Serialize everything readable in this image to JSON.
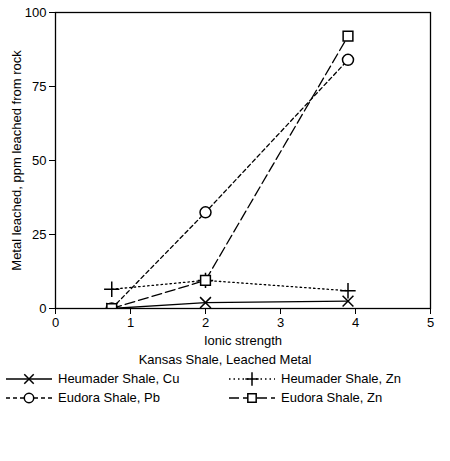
{
  "chart_data": {
    "type": "line",
    "x_label": "Ionic strength",
    "y_label": "Metal leached, ppm leached from rock",
    "legend_title": "Kansas Shale, Leached Metal",
    "legend": "bottom",
    "xlim": [
      0,
      5
    ],
    "xticks": [
      0,
      1,
      2,
      3,
      4,
      5
    ],
    "ylim": [
      0,
      100
    ],
    "yticks": [
      0,
      25,
      50,
      75,
      100
    ],
    "grid": false,
    "x": [
      0.75,
      2,
      3.9
    ],
    "series": [
      {
        "name": "Heumader Shale, Cu",
        "color": "#000000",
        "marker": "times",
        "line_style": "solid",
        "values": [
          0,
          2,
          2.5
        ]
      },
      {
        "name": "Heumader Shale, Zn",
        "color": "#000000",
        "marker": "plus",
        "line_style": "dotted",
        "values": [
          6.5,
          9.5,
          6
        ]
      },
      {
        "name": "Eudora Shale, Pb",
        "color": "#000000",
        "marker": "circle",
        "line_style": "dashed",
        "values": [
          0,
          32.5,
          84
        ]
      },
      {
        "name": "Eudora Shale, Zn",
        "color": "#000000",
        "marker": "square",
        "line_style": "longdash",
        "values": [
          0,
          9.5,
          92
        ]
      }
    ]
  }
}
